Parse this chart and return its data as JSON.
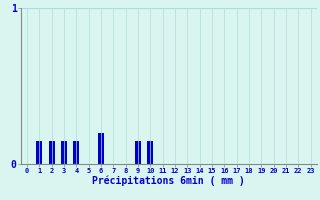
{
  "hours": [
    0,
    1,
    2,
    3,
    4,
    5,
    6,
    7,
    8,
    9,
    10,
    11,
    12,
    13,
    14,
    15,
    16,
    17,
    18,
    19,
    20,
    21,
    22,
    23
  ],
  "values": [
    0,
    0.15,
    0.15,
    0.15,
    0.15,
    0,
    0.2,
    0,
    0,
    0.15,
    0.15,
    0,
    0,
    0,
    0,
    0,
    0,
    0,
    0,
    0,
    0,
    0,
    0,
    0
  ],
  "bar_color": "#0000cc",
  "background_color": "#d8f5f0",
  "grid_color": "#b0ddd5",
  "axis_color": "#888888",
  "text_color": "#0000cc",
  "xlabel": "Précipitations 6min ( mm )",
  "ylim": [
    0,
    1
  ],
  "yticks": [
    0,
    1
  ],
  "bar_width": 0.5
}
